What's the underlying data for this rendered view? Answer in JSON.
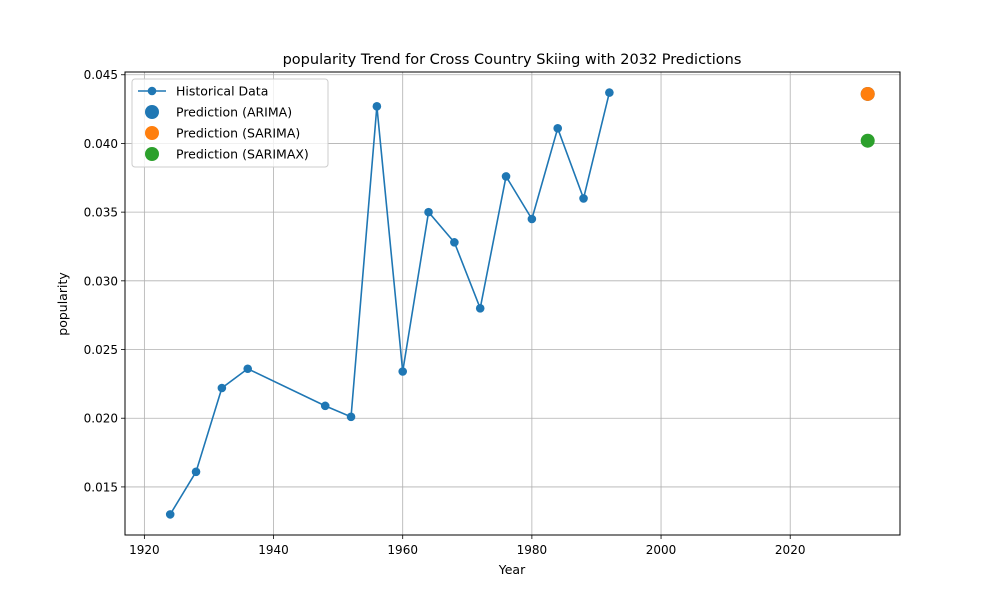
{
  "chart_data": {
    "type": "line",
    "title": "popularity Trend for Cross Country Skiing with 2032 Predictions",
    "xlabel": "Year",
    "ylabel": "popularity",
    "xlim": [
      1917,
      2037
    ],
    "ylim": [
      0.0115,
      0.0452
    ],
    "xticks": [
      1920,
      1940,
      1960,
      1980,
      2000,
      2020
    ],
    "yticks": [
      0.015,
      0.02,
      0.025,
      0.03,
      0.035,
      0.04,
      0.045
    ],
    "ytick_labels": [
      "0.015",
      "0.020",
      "0.025",
      "0.030",
      "0.035",
      "0.040",
      "0.045"
    ],
    "grid": true,
    "legend_position": "top-left",
    "series": [
      {
        "name": "Historical Data",
        "kind": "line-marker",
        "color": "#1f77b4",
        "x": [
          1924,
          1928,
          1932,
          1936,
          1948,
          1952,
          1956,
          1960,
          1964,
          1968,
          1972,
          1976,
          1980,
          1984,
          1988,
          1992
        ],
        "y": [
          0.013,
          0.0161,
          0.0222,
          0.0236,
          0.0209,
          0.0201,
          0.0427,
          0.0234,
          0.035,
          0.0328,
          0.028,
          0.0376,
          0.0345,
          0.0411,
          0.036,
          0.0437
        ]
      },
      {
        "name": "Prediction (ARIMA)",
        "kind": "point",
        "color": "#1f77b4",
        "x": [
          2032
        ],
        "y": [
          0.0436
        ]
      },
      {
        "name": "Prediction (SARIMA)",
        "kind": "point",
        "color": "#ff7f0e",
        "x": [
          2032
        ],
        "y": [
          0.0436
        ]
      },
      {
        "name": "Prediction (SARIMAX)",
        "kind": "point",
        "color": "#2ca02c",
        "x": [
          2032
        ],
        "y": [
          0.0402
        ]
      }
    ]
  }
}
